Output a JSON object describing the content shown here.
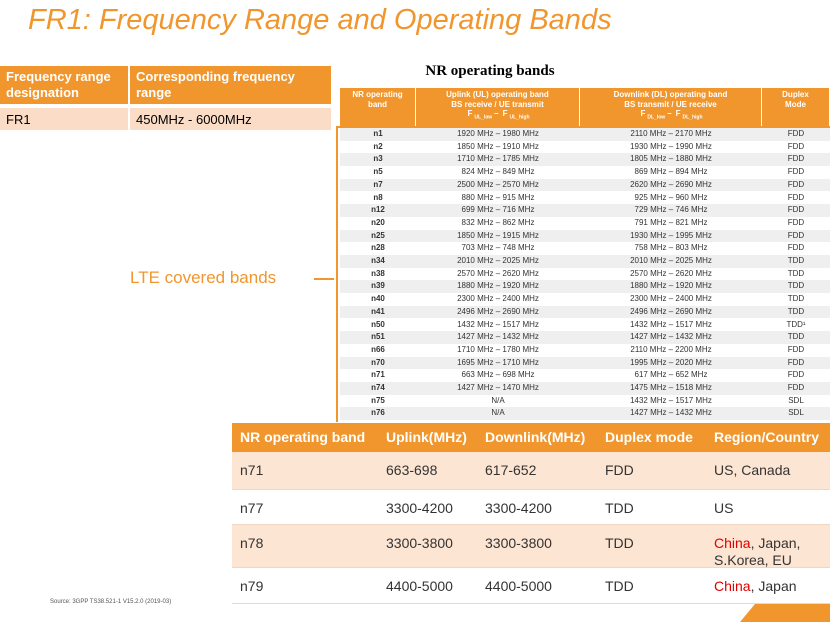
{
  "title": "FR1: Frequency Range and Operating Bands",
  "fr_table": {
    "headers": [
      "Frequency range designation",
      "Corresponding frequency range"
    ],
    "rows": [
      [
        "FR1",
        "450MHz - 6000MHz"
      ]
    ]
  },
  "nr_table": {
    "title": "NR operating bands",
    "headers": [
      {
        "lines": [
          "NR operating",
          "band"
        ]
      },
      {
        "lines": [
          "Uplink (UL) operating band",
          "BS receive / UE transmit"
        ],
        "formula": [
          {
            "base": "F",
            "sub": "UL_low"
          },
          {
            "base": "–"
          },
          {
            "base": "F",
            "sub": "UL_high"
          }
        ]
      },
      {
        "lines": [
          "Downlink (DL) operating band",
          "BS transmit / UE receive"
        ],
        "formula": [
          {
            "base": "F",
            "sub": "DL_low"
          },
          {
            "base": "–"
          },
          {
            "base": "F",
            "sub": "DL_high"
          }
        ]
      },
      {
        "lines": [
          "Duplex",
          "Mode"
        ]
      }
    ],
    "rows": [
      [
        "n1",
        "1920 MHz – 1980 MHz",
        "2110 MHz – 2170 MHz",
        "FDD"
      ],
      [
        "n2",
        "1850 MHz – 1910 MHz",
        "1930 MHz – 1990 MHz",
        "FDD"
      ],
      [
        "n3",
        "1710 MHz – 1785 MHz",
        "1805 MHz – 1880 MHz",
        "FDD"
      ],
      [
        "n5",
        "824 MHz – 849 MHz",
        "869 MHz – 894 MHz",
        "FDD"
      ],
      [
        "n7",
        "2500 MHz – 2570 MHz",
        "2620 MHz – 2690 MHz",
        "FDD"
      ],
      [
        "n8",
        "880 MHz – 915 MHz",
        "925 MHz – 960 MHz",
        "FDD"
      ],
      [
        "n12",
        "699 MHz – 716 MHz",
        "729 MHz – 746 MHz",
        "FDD"
      ],
      [
        "n20",
        "832 MHz – 862 MHz",
        "791 MHz – 821 MHz",
        "FDD"
      ],
      [
        "n25",
        "1850 MHz – 1915 MHz",
        "1930 MHz – 1995 MHz",
        "FDD"
      ],
      [
        "n28",
        "703 MHz – 748 MHz",
        "758 MHz – 803 MHz",
        "FDD"
      ],
      [
        "n34",
        "2010 MHz – 2025 MHz",
        "2010 MHz – 2025 MHz",
        "TDD"
      ],
      [
        "n38",
        "2570 MHz – 2620 MHz",
        "2570 MHz – 2620 MHz",
        "TDD"
      ],
      [
        "n39",
        "1880 MHz – 1920 MHz",
        "1880 MHz – 1920 MHz",
        "TDD"
      ],
      [
        "n40",
        "2300 MHz – 2400 MHz",
        "2300 MHz – 2400 MHz",
        "TDD"
      ],
      [
        "n41",
        "2496 MHz – 2690 MHz",
        "2496 MHz – 2690 MHz",
        "TDD"
      ],
      [
        "n50",
        "1432 MHz – 1517 MHz",
        "1432 MHz – 1517 MHz",
        "TDD¹"
      ],
      [
        "n51",
        "1427 MHz – 1432 MHz",
        "1427 MHz – 1432 MHz",
        "TDD"
      ],
      [
        "n66",
        "1710 MHz – 1780 MHz",
        "2110 MHz – 2200 MHz",
        "FDD"
      ],
      [
        "n70",
        "1695 MHz – 1710 MHz",
        "1995 MHz – 2020 MHz",
        "FDD"
      ],
      [
        "n71",
        "663 MHz – 698 MHz",
        "617 MHz – 652 MHz",
        "FDD"
      ],
      [
        "n74",
        "1427 MHz – 1470 MHz",
        "1475 MHz – 1518 MHz",
        "FDD"
      ],
      [
        "n75",
        "N/A",
        "1432 MHz – 1517 MHz",
        "SDL"
      ],
      [
        "n76",
        "N/A",
        "1427 MHz – 1432 MHz",
        "SDL"
      ]
    ]
  },
  "annotation": "LTE covered bands",
  "band_table": {
    "headers": [
      "NR operating band",
      "Uplink(MHz)",
      "Downlink(MHz)",
      "Duplex mode",
      "Region/Country"
    ],
    "rows": [
      [
        "n71",
        "663-698",
        "617-652",
        "FDD",
        [
          {
            "text": "US, Canada"
          }
        ]
      ],
      [
        "n77",
        "3300-4200",
        "3300-4200",
        "TDD",
        [
          {
            "text": "US"
          }
        ]
      ],
      [
        "n78",
        "3300-3800",
        "3300-3800",
        "TDD",
        [
          {
            "text": "China",
            "highlight": true
          },
          {
            "text": ", Japan, S.Korea, EU"
          }
        ]
      ],
      [
        "n79",
        "4400-5000",
        "4400-5000",
        "TDD",
        [
          {
            "text": "China",
            "highlight": true
          },
          {
            "text": ", Japan"
          }
        ]
      ]
    ]
  },
  "source": "Source: 3GPP TS38.521-1 V15.2.0 (2019-03)"
}
